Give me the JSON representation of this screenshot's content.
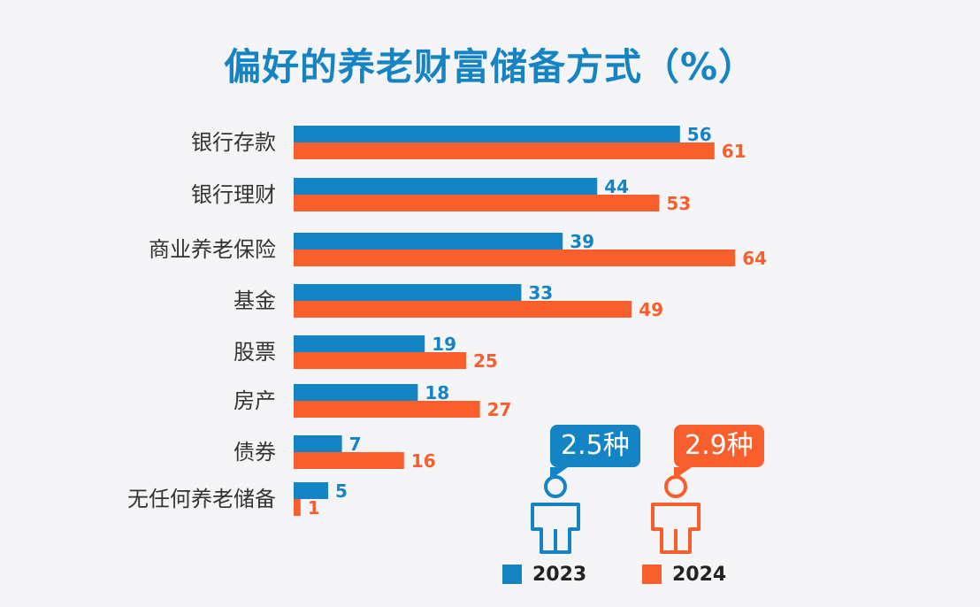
{
  "chart_data": {
    "type": "bar",
    "orientation": "horizontal",
    "title": "偏好的养老财富储备方式（%）",
    "categories": [
      "银行存款",
      "银行理财",
      "商业养老保险",
      "基金",
      "股票",
      "房产",
      "债券",
      "无任何养老储备"
    ],
    "series": [
      {
        "name": "2023",
        "color": "#1584c4",
        "values": [
          56,
          44,
          39,
          33,
          19,
          18,
          7,
          5
        ]
      },
      {
        "name": "2024",
        "color": "#f95e2d",
        "values": [
          61,
          53,
          64,
          49,
          25,
          27,
          16,
          1
        ]
      }
    ],
    "xlim": [
      0,
      64
    ],
    "grid": false,
    "legend_position": "bottom-right"
  },
  "callouts": [
    {
      "year": "2023",
      "text": "2.5种",
      "color": "#1584c4"
    },
    {
      "year": "2024",
      "text": "2.9种",
      "color": "#f95e2d"
    }
  ],
  "icons": {
    "person": "person-icon"
  }
}
